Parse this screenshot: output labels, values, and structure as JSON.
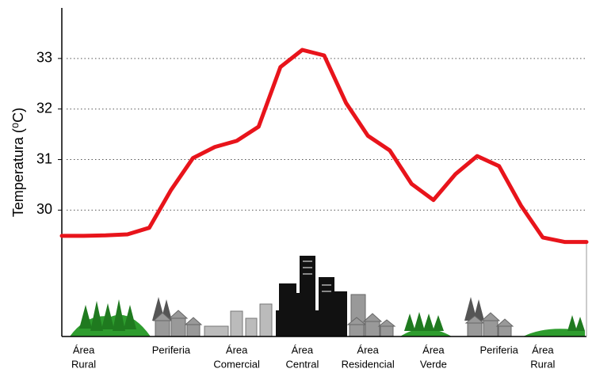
{
  "chart_data": {
    "type": "line",
    "y_label": "Temperatura (⁰C)",
    "categories": [
      null,
      [
        "Área",
        "Rural"
      ],
      null,
      null,
      null,
      [
        "Periferia"
      ],
      null,
      null,
      [
        "Área",
        "Comercial"
      ],
      null,
      null,
      [
        "Área",
        "Central"
      ],
      null,
      null,
      [
        "Área",
        "Residencial"
      ],
      null,
      null,
      [
        "Área",
        "Verde"
      ],
      null,
      null,
      [
        "Periferia"
      ],
      null,
      [
        "Área",
        "Rural"
      ],
      null,
      null
    ],
    "series": [
      {
        "color": "#e8141b",
        "values": [
          29.49,
          29.49,
          29.5,
          29.52,
          29.65,
          30.4,
          31.03,
          31.25,
          31.37,
          31.65,
          32.83,
          33.17,
          33.06,
          32.12,
          31.47,
          31.18,
          30.52,
          30.2,
          30.71,
          31.07,
          30.87,
          30.09,
          29.46,
          29.37,
          29.37
        ]
      }
    ],
    "ylim": [
      27.5,
      34
    ],
    "yticks": [
      30,
      31,
      32,
      33
    ],
    "grid": true
  }
}
